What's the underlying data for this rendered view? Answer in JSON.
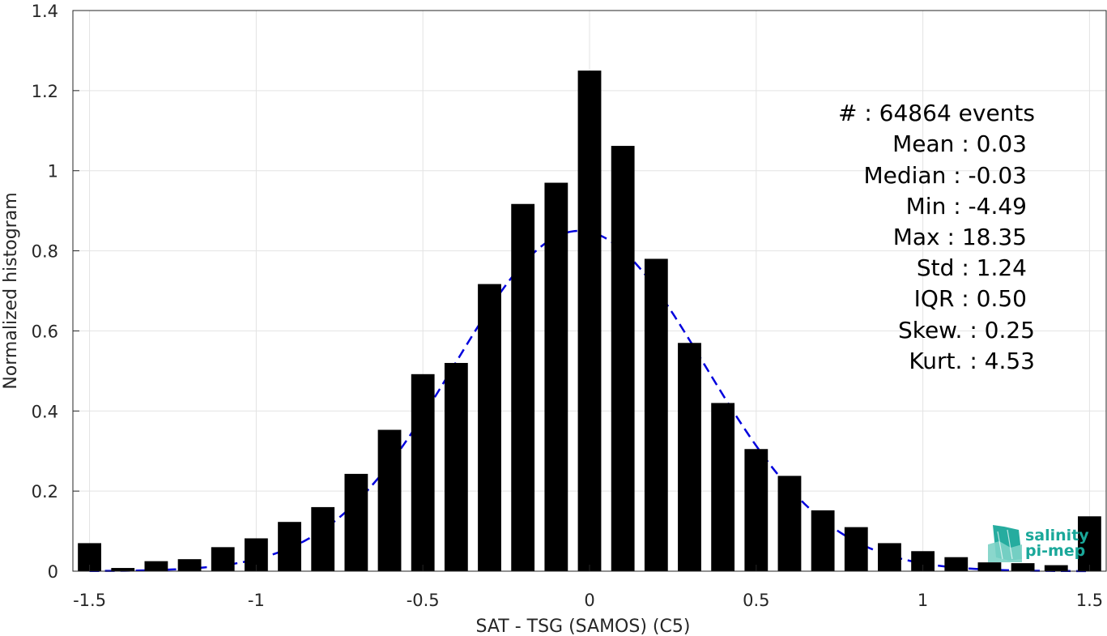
{
  "chart_data": {
    "type": "bar",
    "xlabel": "SAT - TSG (SAMOS) (C5)",
    "ylabel": "Normalized histogram",
    "xlim": [
      -1.55,
      1.55
    ],
    "ylim": [
      0,
      1.4
    ],
    "xticks": [
      "-1.5",
      "-1",
      "-0.5",
      "0",
      "0.5",
      "1",
      "1.5"
    ],
    "xtick_values": [
      -1.5,
      -1,
      -0.5,
      0,
      0.5,
      1,
      1.5
    ],
    "yticks": [
      "0",
      "0.2",
      "0.4",
      "0.6",
      "0.8",
      "1",
      "1.2",
      "1.4"
    ],
    "ytick_values": [
      0,
      0.2,
      0.4,
      0.6,
      0.8,
      1.0,
      1.2,
      1.4
    ],
    "grid": true,
    "bar_width": 0.07,
    "bar_color": "#000000",
    "x": [
      -1.5,
      -1.4,
      -1.3,
      -1.2,
      -1.1,
      -1.0,
      -0.9,
      -0.8,
      -0.7,
      -0.6,
      -0.5,
      -0.4,
      -0.3,
      -0.2,
      -0.1,
      0.0,
      0.1,
      0.2,
      0.3,
      0.4,
      0.5,
      0.6,
      0.7,
      0.8,
      0.9,
      1.0,
      1.1,
      1.2,
      1.3,
      1.4,
      1.5
    ],
    "values": [
      0.07,
      0.008,
      0.025,
      0.03,
      0.06,
      0.082,
      0.123,
      0.16,
      0.243,
      0.353,
      0.492,
      0.52,
      0.717,
      0.917,
      0.97,
      1.25,
      1.062,
      0.78,
      0.57,
      0.42,
      0.305,
      0.238,
      0.152,
      0.11,
      0.07,
      0.05,
      0.035,
      0.022,
      0.02,
      0.015,
      0.137
    ],
    "fit": {
      "style": "dashed",
      "color": "#0000dd",
      "mean": -0.03,
      "peak": 0.85,
      "sigma": 0.375,
      "x_range": [
        -1.5,
        1.5
      ]
    }
  },
  "stats": {
    "events": "#  : 64864 events",
    "mean": "Mean : 0.03",
    "median": "Median : -0.03",
    "min": "Min : -4.49",
    "max": "Max : 18.35",
    "std": "Std : 1.24",
    "iqr": "IQR : 0.50",
    "skew": "Skew. : 0.25",
    "kurt": "Kurt. : 4.53"
  },
  "logo": {
    "line1": "salinity",
    "line2": "pi-mep",
    "color": "#1aa89a"
  }
}
